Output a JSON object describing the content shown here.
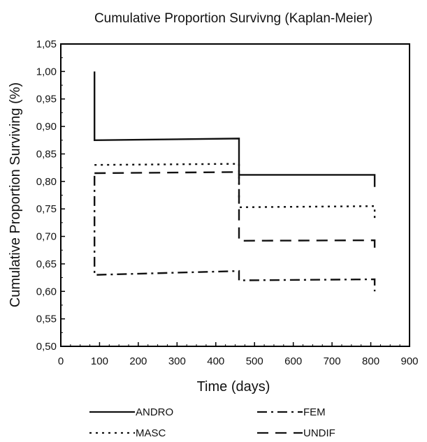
{
  "chart_data": {
    "type": "line",
    "step": true,
    "title": "Cumulative Proportion Survivng (Kaplan-Meier)",
    "xlabel": "Time (days)",
    "ylabel": "Cumulative Proportion Surviving (%)",
    "xlim": [
      0,
      900
    ],
    "ylim": [
      0.5,
      1.05
    ],
    "x_ticks": [
      "0",
      "100",
      "200",
      "300",
      "400",
      "500",
      "600",
      "700",
      "800",
      "900"
    ],
    "y_ticks": [
      "0,50",
      "0,55",
      "0,60",
      "0,65",
      "0,70",
      "0,75",
      "0,80",
      "0,85",
      "0,90",
      "0,95",
      "1,00",
      "1,05"
    ],
    "grid": false,
    "legend_placement": "bottom",
    "series": [
      {
        "name": "ANDRO",
        "dash": "solid",
        "x": [
          87,
          87,
          460,
          460,
          810,
          810
        ],
        "y": [
          1.0,
          0.875,
          0.878,
          0.812,
          0.812,
          0.79
        ]
      },
      {
        "name": "FEM",
        "dash": "dashdot",
        "x": [
          87,
          87,
          460,
          460,
          810,
          810
        ],
        "y": [
          0.81,
          0.63,
          0.637,
          0.62,
          0.622,
          0.6
        ]
      },
      {
        "name": "MASC",
        "dash": "dotted",
        "x": [
          87,
          460,
          460,
          810,
          810
        ],
        "y": [
          0.83,
          0.832,
          0.753,
          0.755,
          0.73
        ]
      },
      {
        "name": "UNDIF",
        "dash": "dashed",
        "x": [
          87,
          460,
          460,
          810,
          810
        ],
        "y": [
          0.815,
          0.817,
          0.692,
          0.693,
          0.67
        ]
      }
    ]
  }
}
